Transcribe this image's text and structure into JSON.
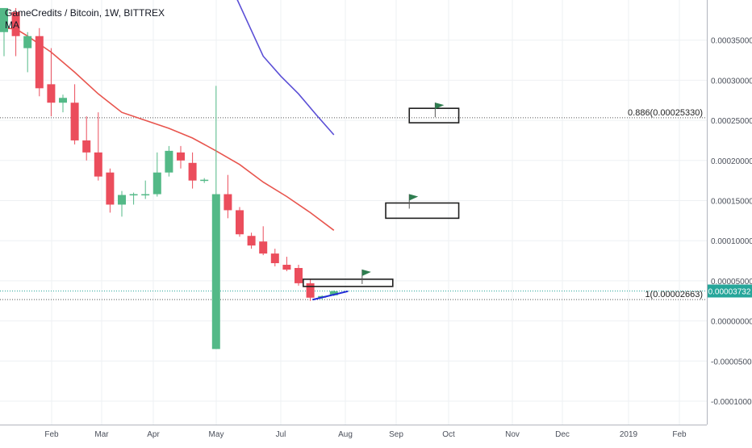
{
  "header": {
    "title": "GameCredits / Bitcoin, 1W, BITTREX",
    "indicator": "MA"
  },
  "chart_data": {
    "type": "candlestick",
    "title": "GameCredits / Bitcoin, 1W, BITTREX",
    "x_ticks": [
      "Feb",
      "Mar",
      "Apr",
      "May",
      "Jul",
      "Aug",
      "Sep",
      "Oct",
      "Nov",
      "Dec",
      "2019",
      "Feb"
    ],
    "y_ticks": [
      "0.00035000",
      "0.00030000",
      "0.00025000",
      "0.00020000",
      "0.00015000",
      "0.00010000",
      "0.00005000",
      "0.00000000",
      "-0.00005000",
      "-0.00010000"
    ],
    "ylim": [
      -0.00013,
      0.00039
    ],
    "colors": {
      "up": "#53b987",
      "down": "#eb4d5c",
      "ma_fast": "#e8554e",
      "ma_slow": "#5b4fd6",
      "trend": "#2029d6",
      "last_price": "#26a69a"
    },
    "candles": [
      {
        "o": 0.00036,
        "h": 0.00039,
        "l": 0.00033,
        "c": 0.00039
      },
      {
        "o": 0.000385,
        "h": 0.00039,
        "l": 0.00033,
        "c": 0.000355
      },
      {
        "o": 0.00034,
        "h": 0.00036,
        "l": 0.00031,
        "c": 0.000355
      },
      {
        "o": 0.000355,
        "h": 0.000365,
        "l": 0.00028,
        "c": 0.00029
      },
      {
        "o": 0.000295,
        "h": 0.00034,
        "l": 0.000255,
        "c": 0.000272
      },
      {
        "o": 0.000272,
        "h": 0.000282,
        "l": 0.00026,
        "c": 0.000278
      },
      {
        "o": 0.000272,
        "h": 0.000295,
        "l": 0.00022,
        "c": 0.000225
      },
      {
        "o": 0.000225,
        "h": 0.000255,
        "l": 0.0002,
        "c": 0.00021
      },
      {
        "o": 0.00021,
        "h": 0.00026,
        "l": 0.000175,
        "c": 0.00018
      },
      {
        "o": 0.000185,
        "h": 0.00019,
        "l": 0.000135,
        "c": 0.000145
      },
      {
        "o": 0.000145,
        "h": 0.000162,
        "l": 0.00013,
        "c": 0.000157
      },
      {
        "o": 0.000157,
        "h": 0.00016,
        "l": 0.000145,
        "c": 0.000158
      },
      {
        "o": 0.000157,
        "h": 0.000175,
        "l": 0.000152,
        "c": 0.000158
      },
      {
        "o": 0.000158,
        "h": 0.00021,
        "l": 0.000155,
        "c": 0.000185
      },
      {
        "o": 0.000185,
        "h": 0.000218,
        "l": 0.00018,
        "c": 0.000212
      },
      {
        "o": 0.00021,
        "h": 0.000218,
        "l": 0.00019,
        "c": 0.0002
      },
      {
        "o": 0.000197,
        "h": 0.00021,
        "l": 0.000165,
        "c": 0.000175
      },
      {
        "o": 0.000175,
        "h": 0.000178,
        "l": 0.000172,
        "c": 0.000176
      },
      {
        "o": -3.5e-05,
        "h": 0.000293,
        "l": -3.5e-05,
        "c": 0.000158
      },
      {
        "o": 0.000158,
        "h": 0.000182,
        "l": 0.000128,
        "c": 0.000138
      },
      {
        "o": 0.000138,
        "h": 0.000142,
        "l": 0.000105,
        "c": 0.000108
      },
      {
        "o": 0.000106,
        "h": 0.00011,
        "l": 9e-05,
        "c": 9.4e-05
      },
      {
        "o": 9.9e-05,
        "h": 0.000118,
        "l": 8.2e-05,
        "c": 8.4e-05
      },
      {
        "o": 8.4e-05,
        "h": 9e-05,
        "l": 6.8e-05,
        "c": 7.2e-05
      },
      {
        "o": 7e-05,
        "h": 8e-05,
        "l": 6.2e-05,
        "c": 6.4e-05
      },
      {
        "o": 6.6e-05,
        "h": 7e-05,
        "l": 4.4e-05,
        "c": 4.7e-05
      },
      {
        "o": 4.7e-05,
        "h": 5.2e-05,
        "l": 2.5e-05,
        "c": 2.9e-05
      },
      {
        "o": 2.9e-05,
        "h": 3.2e-05,
        "l": 2.6e-05,
        "c": 3.1e-05
      },
      {
        "o": 3.2e-05,
        "h": 3.8e-05,
        "l": 3.1e-05,
        "c": 3.7e-05
      }
    ],
    "ma_fast": [
      [
        0,
        0.000365
      ],
      [
        1,
        0.000364
      ],
      [
        2,
        0.000355
      ],
      [
        4,
        0.000335
      ],
      [
        6,
        0.00031
      ],
      [
        8,
        0.000283
      ],
      [
        10,
        0.00026
      ],
      [
        12,
        0.00025
      ],
      [
        14,
        0.00024
      ],
      [
        16,
        0.000228
      ],
      [
        18,
        0.000212
      ],
      [
        20,
        0.000195
      ],
      [
        22,
        0.000173
      ],
      [
        24,
        0.000155
      ],
      [
        26,
        0.000135
      ],
      [
        28,
        0.000113
      ]
    ],
    "ma_slow": [
      [
        18,
        0.00045
      ],
      [
        19.5,
        0.00041
      ],
      [
        21,
        0.000362
      ],
      [
        22,
        0.00033
      ],
      [
        23.5,
        0.000305
      ],
      [
        25,
        0.000283
      ],
      [
        26.5,
        0.000257
      ],
      [
        28,
        0.000232
      ]
    ],
    "trendline": [
      [
        26.2,
        2.65e-05
      ],
      [
        29.2,
        3.7e-05
      ]
    ],
    "fib_levels": [
      {
        "label": "0.886(0.00025330)",
        "value": 0.0002533
      },
      {
        "label": "1(0.00002663)",
        "value": 2.663e-05
      }
    ],
    "last_price": {
      "label": "0.00003732",
      "value": 3.732e-05
    },
    "target_boxes": [
      {
        "x0": 25.4,
        "x1": 33.0,
        "top": 5.2e-05,
        "bottom": 4.3e-05
      },
      {
        "x0": 32.4,
        "x1": 38.6,
        "top": 0.000147,
        "bottom": 0.000128
      },
      {
        "x0": 34.4,
        "x1": 38.6,
        "top": 0.000265,
        "bottom": 0.000247
      }
    ],
    "flags": [
      {
        "x": 30.4,
        "y": 5e-05
      },
      {
        "x": 34.4,
        "y": 0.000144
      },
      {
        "x": 36.6,
        "y": 0.000258
      }
    ]
  }
}
